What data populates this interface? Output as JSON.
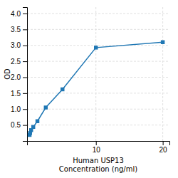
{
  "chart_data": {
    "type": "line",
    "x": [
      0.078,
      0.156,
      0.313,
      0.625,
      1.25,
      2.5,
      5,
      10,
      20
    ],
    "values": [
      0.19,
      0.25,
      0.34,
      0.44,
      0.62,
      1.05,
      1.62,
      2.93,
      3.1
    ],
    "marker": "square",
    "xlabel": [
      "Human USP13",
      "Concentration (ng/ml)"
    ],
    "ylabel": "OD",
    "xlim": [
      -0.3,
      21
    ],
    "ylim": [
      0.0,
      4.2
    ],
    "xticks": [
      10,
      20
    ],
    "yticks": [
      0.5,
      {
        "value": 1.0,
        "label": "1.0"
      },
      1.5,
      {
        "value": 2.0,
        "label": "2.0"
      },
      2.5,
      {
        "value": 3.0,
        "label": "3.0"
      },
      3.5,
      {
        "value": 4.0,
        "label": "4.0"
      }
    ],
    "grid": true
  }
}
